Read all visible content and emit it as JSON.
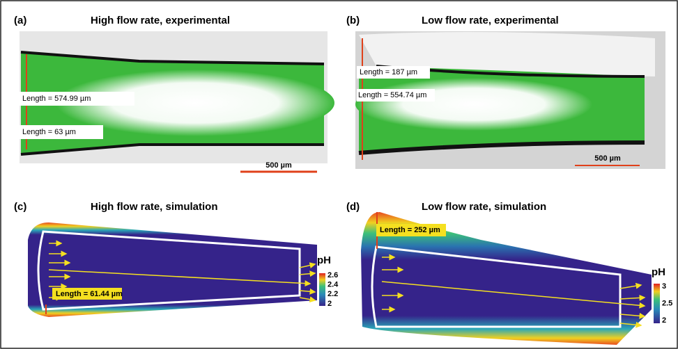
{
  "panels": [
    {
      "letter": "(a)",
      "title": "High flow rate, experimental",
      "annotations": [
        "Length = 574.99 µm",
        "Length = 63 µm"
      ],
      "scale_bar": "500 µm"
    },
    {
      "letter": "(b)",
      "title": "Low flow rate, experimental",
      "annotations": [
        "Length = 187 µm",
        "Length = 554.74 µm"
      ],
      "scale_bar": "500 µm"
    },
    {
      "letter": "(c)",
      "title": "High flow rate, simulation",
      "annotations": [
        "Length = 61.44 µm"
      ],
      "colorbar": {
        "label": "pH",
        "ticks": [
          "2.6",
          "2.4",
          "2.2",
          "2"
        ]
      }
    },
    {
      "letter": "(d)",
      "title": "Low flow rate, simulation",
      "annotations": [
        "Length = 252 µm"
      ],
      "colorbar": {
        "label": "pH",
        "ticks": [
          "3",
          "2.5",
          "2"
        ]
      }
    }
  ]
}
